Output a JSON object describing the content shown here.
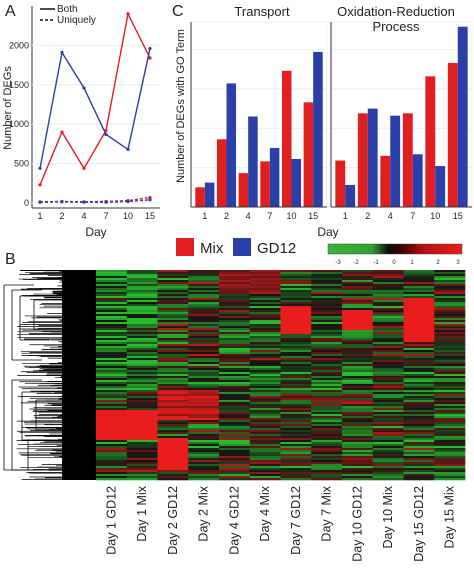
{
  "panels": {
    "a": {
      "letter": "A"
    },
    "b": {
      "letter": "B"
    },
    "c": {
      "letter": "C"
    }
  },
  "legend_top": {
    "both": "Both",
    "uniquely": "Uniquely"
  },
  "legend_mix_gd12": {
    "mix": "Mix",
    "gd12": "GD12"
  },
  "colors": {
    "mix": "#e02020",
    "gd12": "#2a3fa8"
  },
  "chart_data": [
    {
      "id": "A",
      "type": "line",
      "xlabel": "Day",
      "ylabel": "Number of DEGs",
      "categories": [
        "1",
        "2",
        "4",
        "7",
        "10",
        "15"
      ],
      "ylim": [
        0,
        2500
      ],
      "yticks": [
        0,
        500,
        1000,
        1500,
        2000
      ],
      "series": [
        {
          "name": "Both",
          "group": "Mix",
          "style": "solid",
          "values": [
            230,
            900,
            440,
            920,
            2400,
            1840
          ]
        },
        {
          "name": "Both",
          "group": "GD12",
          "style": "solid",
          "values": [
            440,
            1910,
            1460,
            870,
            680,
            1960
          ]
        },
        {
          "name": "Uniquely",
          "group": "Mix",
          "style": "dashed",
          "values": [
            15,
            20,
            15,
            20,
            30,
            70
          ]
        },
        {
          "name": "Uniquely",
          "group": "GD12",
          "style": "dashed",
          "values": [
            10,
            15,
            10,
            10,
            20,
            40
          ]
        }
      ]
    },
    {
      "id": "C",
      "type": "bar",
      "xlabel": "Day",
      "ylabel": "Number of DEGs with GO Term",
      "facets": [
        {
          "title": "Transport",
          "categories": [
            "1",
            "2",
            "4",
            "7",
            "10",
            "15"
          ],
          "series": [
            {
              "name": "Mix",
              "values": [
                25,
                86,
                43,
                58,
                173,
                133
              ]
            },
            {
              "name": "GD12",
              "values": [
                31,
                157,
                115,
                75,
                61,
                197
              ]
            }
          ]
        },
        {
          "title": "Oxidation-Reduction Process",
          "categories": [
            "1",
            "2",
            "4",
            "7",
            "10",
            "15"
          ],
          "series": [
            {
              "name": "Mix",
              "values": [
                59,
                119,
                65,
                119,
                166,
                183
              ]
            },
            {
              "name": "GD12",
              "values": [
                28,
                125,
                116,
                67,
                52,
                229
              ]
            }
          ]
        }
      ],
      "ylim": [
        0,
        235
      ]
    },
    {
      "id": "B",
      "type": "heatmap",
      "columns": [
        "Day 1 GD12",
        "Day 1 Mix",
        "Day 2 GD12",
        "Day 2 Mix",
        "Day 4 GD12",
        "Day 4 Mix",
        "Day 7 GD12",
        "Day 7 Mix",
        "Day 10  GD12",
        "Day 10 Mix",
        "Day 15  GD12",
        "Day 15 Mix"
      ],
      "colorscale": {
        "ticks": [
          "-3",
          "-2",
          "-1",
          "0",
          "1",
          "2",
          "3"
        ],
        "low": "#3cb43c",
        "mid": "#000000",
        "high": "#e81818"
      }
    }
  ]
}
